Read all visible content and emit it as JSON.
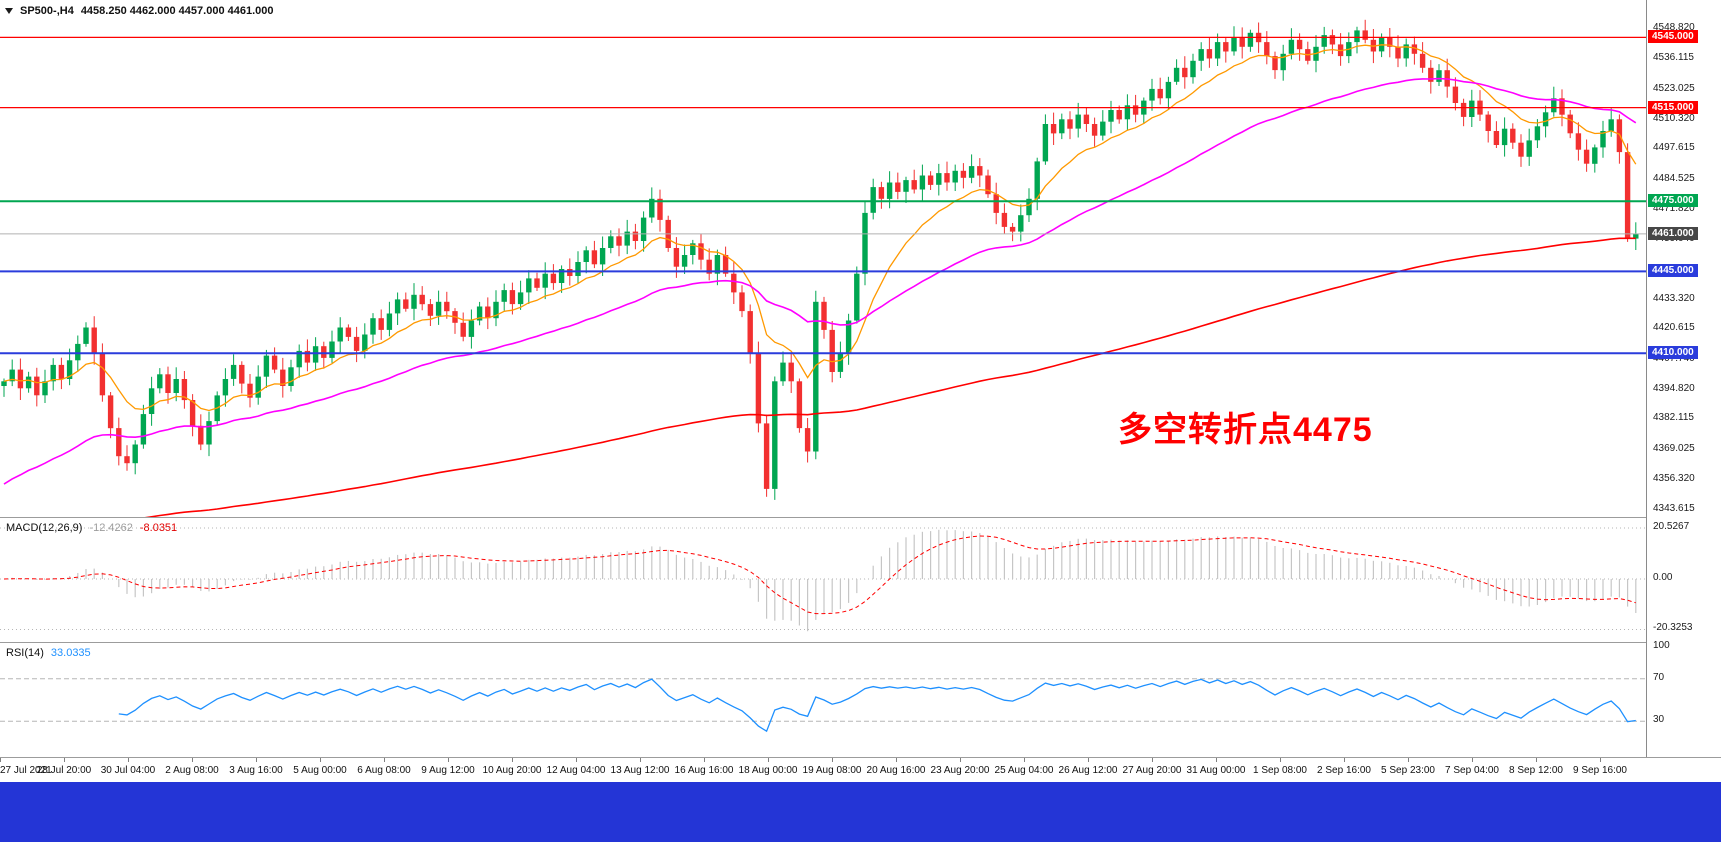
{
  "header": {
    "symbol_period": "SP500-,H4",
    "ohlc": "4458.250 4462.000 4457.000 4461.000"
  },
  "chart_data": {
    "type": "candlestick",
    "title": "SP500-,H4",
    "symbol": "SP500-",
    "timeframe": "H4",
    "current_bar": {
      "open": 4458.25,
      "high": 4462.0,
      "low": 4457.0,
      "close": 4461.0
    },
    "colors": {
      "up": "#00a651",
      "down": "#f23030",
      "macd_hist": "#c6c6c6",
      "macd_signal": "#ff0000",
      "rsi_line": "#1e90ff",
      "dash_level": "#b6b6b6",
      "bid_line": "#b0b0b0",
      "bid_box": "#474747",
      "taskbar": "#2435d6",
      "separator": "#9c9c9c"
    },
    "price_axis": {
      "top_edge": 4561,
      "bottom_edge": 4340,
      "ticks": [
        "4548.820",
        "4536.115",
        "4523.025",
        "4510.320",
        "4497.615",
        "4484.525",
        "4471.820",
        "4459.040",
        "4446.215",
        "4433.320",
        "4420.615",
        "4407.740",
        "4394.820",
        "4382.115",
        "4369.025",
        "4356.320",
        "4343.615"
      ]
    },
    "time_ticks": [
      "27 Jul 2021",
      "28 Jul 20:00",
      "30 Jul 04:00",
      "2 Aug 08:00",
      "3 Aug 16:00",
      "5 Aug 00:00",
      "6 Aug 08:00",
      "9 Aug 12:00",
      "10 Aug 20:00",
      "12 Aug 04:00",
      "13 Aug 12:00",
      "16 Aug 16:00",
      "18 Aug 00:00",
      "19 Aug 08:00",
      "20 Aug 16:00",
      "23 Aug 20:00",
      "25 Aug 04:00",
      "26 Aug 12:00",
      "27 Aug 20:00",
      "31 Aug 00:00",
      "1 Sep 08:00",
      "2 Sep 16:00",
      "5 Sep 23:00",
      "7 Sep 04:00",
      "8 Sep 12:00",
      "9 Sep 16:00"
    ],
    "candles": {
      "first_open": 4396,
      "closes": [
        4398,
        4403,
        4395,
        4400,
        4392,
        4398,
        4405,
        4399,
        4407,
        4414,
        4421,
        4410,
        4392,
        4378,
        4366,
        4363,
        4371,
        4384,
        4395,
        4401,
        4393,
        4399,
        4390,
        4379,
        4371,
        4381,
        4392,
        4399,
        4405,
        4397,
        4391,
        4400,
        4409,
        4403,
        4396,
        4404,
        4411,
        4406,
        4413,
        4408,
        4415,
        4421,
        4417,
        4411,
        4418,
        4425,
        4420,
        4427,
        4433,
        4429,
        4435,
        4431,
        4426,
        4432,
        4428,
        4423,
        4417,
        4424,
        4430,
        4425,
        4432,
        4437,
        4431,
        4436,
        4442,
        4438,
        4444,
        4440,
        4446,
        4443,
        4449,
        4454,
        4448,
        4455,
        4460,
        4456,
        4462,
        4458,
        4468,
        4476,
        4467,
        4455,
        4447,
        4452,
        4457,
        4450,
        4444,
        4452,
        4444,
        4436,
        4428,
        4410,
        4380,
        4352,
        4398,
        4406,
        4398,
        4378,
        4368,
        4432,
        4420,
        4402,
        4410,
        4424,
        4444,
        4470,
        4481,
        4476,
        4483,
        4479,
        4484,
        4480,
        4486,
        4482,
        4487,
        4483,
        4488,
        4485,
        4490,
        4486,
        4478,
        4470,
        4464,
        4462,
        4469,
        4476,
        4492,
        4508,
        4504,
        4510,
        4506,
        4512,
        4508,
        4503,
        4509,
        4514,
        4510,
        4516,
        4512,
        4518,
        4523,
        4519,
        4526,
        4532,
        4528,
        4535,
        4540,
        4536,
        4543,
        4539,
        4545,
        4541,
        4547,
        4543,
        4537,
        4531,
        4538,
        4544,
        4540,
        4535,
        4541,
        4546,
        4542,
        4537,
        4543,
        4548,
        4544,
        4539,
        4545,
        4541,
        4536,
        4542,
        4538,
        4532,
        4526,
        4531,
        4524,
        4517,
        4511,
        4518,
        4512,
        4505,
        4499,
        4506,
        4500,
        4494,
        4501,
        4507,
        4513,
        4519,
        4512,
        4504,
        4497,
        4491,
        4498,
        4505,
        4510,
        4496,
        4459,
        4461
      ]
    },
    "moving_averages": [
      {
        "name": "fast-ma-orange",
        "color": "#ff9900",
        "k": 0.16,
        "seed": 4398,
        "width": 1.3
      },
      {
        "name": "mid-ma-magenta",
        "color": "#ff00ff",
        "k": 0.045,
        "seed": 4352,
        "width": 1.6
      },
      {
        "name": "slow-ma-red",
        "color": "#ff0000",
        "k": 0.009,
        "seed": 4330,
        "width": 1.6
      }
    ],
    "hlines": [
      {
        "price": 4545.0,
        "label": "4545.000",
        "color": "#ff0000",
        "width": 1.2
      },
      {
        "price": 4515.0,
        "label": "4515.000",
        "color": "#ff0000",
        "width": 1.2
      },
      {
        "price": 4475.0,
        "label": "4475.000",
        "color": "#00a651",
        "width": 2
      },
      {
        "price": 4445.0,
        "label": "4445.000",
        "color": "#2a3cdc",
        "width": 2
      },
      {
        "price": 4410.0,
        "label": "4410.000",
        "color": "#2a3cdc",
        "width": 2
      }
    ],
    "bid": {
      "price": 4461.0,
      "label": "4461.000"
    },
    "annotation": {
      "text": "多空转折点4475",
      "color": "#ff0000"
    },
    "macd": {
      "label": "MACD(12,26,9)",
      "value_main": "-12.4262",
      "value_signal": "-8.0351",
      "axis_labels": [
        {
          "text": "20.5267",
          "level": 20.5267
        },
        {
          "text": "0.00",
          "level": 0
        },
        {
          "text": "-20.3253",
          "level": -20.3253
        }
      ]
    },
    "rsi": {
      "label": "RSI(14)",
      "value": "33.0335",
      "axis_labels": [
        {
          "text": "100",
          "level": 100
        },
        {
          "text": "70",
          "level": 70
        },
        {
          "text": "30",
          "level": 30
        }
      ],
      "dashed_levels": [
        70,
        30
      ]
    }
  }
}
